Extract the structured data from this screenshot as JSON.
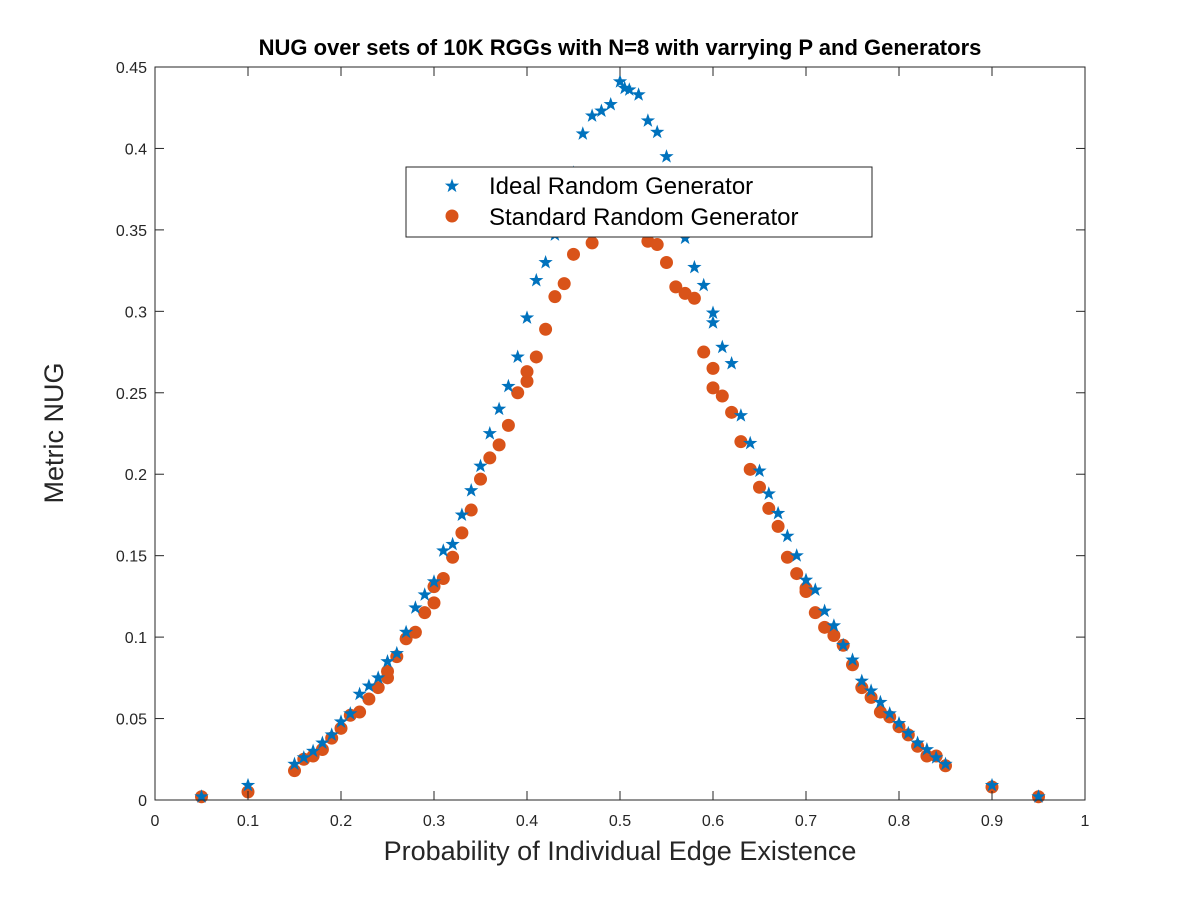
{
  "chart_data": {
    "type": "scatter",
    "title": "NUG over sets of 10K RGGs with N=8 with varrying P and Generators",
    "xlabel": "Probability of Individual Edge Existence",
    "ylabel": "Metric NUG",
    "xlim": [
      0,
      1
    ],
    "ylim": [
      0,
      0.45
    ],
    "xticks": [
      "0",
      "0.1",
      "0.2",
      "0.3",
      "0.4",
      "0.5",
      "0.6",
      "0.7",
      "0.8",
      "0.9",
      "1"
    ],
    "yticks": [
      "0",
      "0.05",
      "0.1",
      "0.15",
      "0.2",
      "0.25",
      "0.3",
      "0.35",
      "0.4",
      "0.45"
    ],
    "grid": false,
    "legend_position": "top-center",
    "series": [
      {
        "name": "Ideal Random Generator",
        "marker": "star",
        "color": "#0072BD",
        "points": [
          [
            0.05,
            0.002
          ],
          [
            0.1,
            0.009
          ],
          [
            0.15,
            0.022
          ],
          [
            0.16,
            0.026
          ],
          [
            0.17,
            0.03
          ],
          [
            0.18,
            0.035
          ],
          [
            0.19,
            0.04
          ],
          [
            0.2,
            0.048
          ],
          [
            0.21,
            0.053
          ],
          [
            0.22,
            0.065
          ],
          [
            0.23,
            0.07
          ],
          [
            0.24,
            0.075
          ],
          [
            0.25,
            0.085
          ],
          [
            0.26,
            0.09
          ],
          [
            0.27,
            0.103
          ],
          [
            0.28,
            0.118
          ],
          [
            0.29,
            0.126
          ],
          [
            0.3,
            0.134
          ],
          [
            0.31,
            0.153
          ],
          [
            0.32,
            0.157
          ],
          [
            0.33,
            0.175
          ],
          [
            0.34,
            0.19
          ],
          [
            0.35,
            0.205
          ],
          [
            0.36,
            0.225
          ],
          [
            0.37,
            0.24
          ],
          [
            0.38,
            0.254
          ],
          [
            0.39,
            0.272
          ],
          [
            0.4,
            0.296
          ],
          [
            0.41,
            0.319
          ],
          [
            0.42,
            0.33
          ],
          [
            0.43,
            0.347
          ],
          [
            0.44,
            0.365
          ],
          [
            0.45,
            0.385
          ],
          [
            0.46,
            0.409
          ],
          [
            0.47,
            0.42
          ],
          [
            0.48,
            0.423
          ],
          [
            0.49,
            0.427
          ],
          [
            0.5,
            0.441
          ],
          [
            0.505,
            0.437
          ],
          [
            0.51,
            0.436
          ],
          [
            0.52,
            0.433
          ],
          [
            0.53,
            0.417
          ],
          [
            0.54,
            0.41
          ],
          [
            0.55,
            0.395
          ],
          [
            0.56,
            0.37
          ],
          [
            0.57,
            0.345
          ],
          [
            0.58,
            0.327
          ],
          [
            0.59,
            0.316
          ],
          [
            0.6,
            0.299
          ],
          [
            0.6,
            0.293
          ],
          [
            0.61,
            0.278
          ],
          [
            0.62,
            0.268
          ],
          [
            0.63,
            0.236
          ],
          [
            0.64,
            0.219
          ],
          [
            0.65,
            0.202
          ],
          [
            0.66,
            0.188
          ],
          [
            0.67,
            0.176
          ],
          [
            0.68,
            0.162
          ],
          [
            0.69,
            0.15
          ],
          [
            0.7,
            0.135
          ],
          [
            0.71,
            0.129
          ],
          [
            0.72,
            0.116
          ],
          [
            0.73,
            0.107
          ],
          [
            0.74,
            0.095
          ],
          [
            0.75,
            0.086
          ],
          [
            0.76,
            0.073
          ],
          [
            0.77,
            0.067
          ],
          [
            0.78,
            0.06
          ],
          [
            0.79,
            0.053
          ],
          [
            0.8,
            0.047
          ],
          [
            0.81,
            0.041
          ],
          [
            0.82,
            0.035
          ],
          [
            0.83,
            0.031
          ],
          [
            0.84,
            0.026
          ],
          [
            0.85,
            0.022
          ],
          [
            0.9,
            0.009
          ],
          [
            0.95,
            0.002
          ]
        ]
      },
      {
        "name": "Standard Random Generator",
        "marker": "circle",
        "color": "#D95319",
        "points": [
          [
            0.05,
            0.002
          ],
          [
            0.1,
            0.005
          ],
          [
            0.15,
            0.018
          ],
          [
            0.16,
            0.025
          ],
          [
            0.17,
            0.027
          ],
          [
            0.18,
            0.031
          ],
          [
            0.19,
            0.038
          ],
          [
            0.2,
            0.044
          ],
          [
            0.21,
            0.052
          ],
          [
            0.22,
            0.054
          ],
          [
            0.23,
            0.062
          ],
          [
            0.24,
            0.069
          ],
          [
            0.25,
            0.075
          ],
          [
            0.25,
            0.079
          ],
          [
            0.26,
            0.088
          ],
          [
            0.27,
            0.099
          ],
          [
            0.28,
            0.103
          ],
          [
            0.29,
            0.115
          ],
          [
            0.3,
            0.121
          ],
          [
            0.3,
            0.131
          ],
          [
            0.31,
            0.136
          ],
          [
            0.32,
            0.149
          ],
          [
            0.33,
            0.164
          ],
          [
            0.34,
            0.178
          ],
          [
            0.35,
            0.197
          ],
          [
            0.36,
            0.21
          ],
          [
            0.37,
            0.218
          ],
          [
            0.38,
            0.23
          ],
          [
            0.39,
            0.25
          ],
          [
            0.4,
            0.257
          ],
          [
            0.4,
            0.263
          ],
          [
            0.41,
            0.272
          ],
          [
            0.42,
            0.289
          ],
          [
            0.43,
            0.309
          ],
          [
            0.44,
            0.317
          ],
          [
            0.45,
            0.335
          ],
          [
            0.46,
            0.353
          ],
          [
            0.47,
            0.342
          ],
          [
            0.48,
            0.365
          ],
          [
            0.49,
            0.368
          ],
          [
            0.5,
            0.358
          ],
          [
            0.51,
            0.358
          ],
          [
            0.52,
            0.361
          ],
          [
            0.53,
            0.343
          ],
          [
            0.54,
            0.341
          ],
          [
            0.55,
            0.33
          ],
          [
            0.56,
            0.315
          ],
          [
            0.57,
            0.311
          ],
          [
            0.58,
            0.308
          ],
          [
            0.59,
            0.275
          ],
          [
            0.6,
            0.265
          ],
          [
            0.6,
            0.253
          ],
          [
            0.61,
            0.248
          ],
          [
            0.62,
            0.238
          ],
          [
            0.63,
            0.22
          ],
          [
            0.64,
            0.203
          ],
          [
            0.65,
            0.192
          ],
          [
            0.66,
            0.179
          ],
          [
            0.67,
            0.168
          ],
          [
            0.68,
            0.149
          ],
          [
            0.69,
            0.139
          ],
          [
            0.7,
            0.13
          ],
          [
            0.7,
            0.128
          ],
          [
            0.71,
            0.115
          ],
          [
            0.72,
            0.106
          ],
          [
            0.73,
            0.101
          ],
          [
            0.74,
            0.095
          ],
          [
            0.75,
            0.083
          ],
          [
            0.76,
            0.069
          ],
          [
            0.77,
            0.063
          ],
          [
            0.78,
            0.054
          ],
          [
            0.79,
            0.051
          ],
          [
            0.8,
            0.045
          ],
          [
            0.81,
            0.04
          ],
          [
            0.82,
            0.033
          ],
          [
            0.83,
            0.027
          ],
          [
            0.84,
            0.027
          ],
          [
            0.85,
            0.021
          ],
          [
            0.9,
            0.008
          ],
          [
            0.95,
            0.002
          ]
        ]
      }
    ]
  }
}
